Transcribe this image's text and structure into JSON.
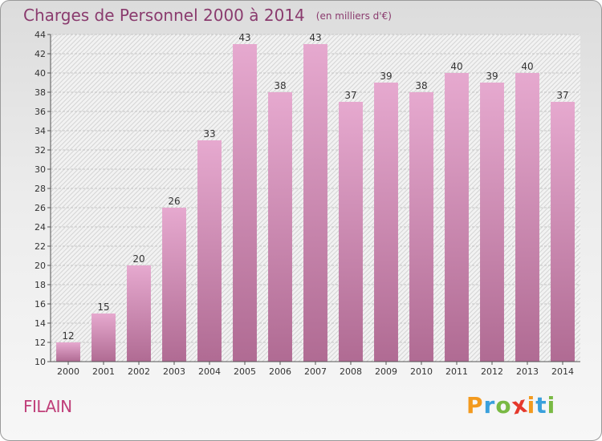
{
  "header": {
    "title": "Charges de Personnel 2000 à 2014",
    "subtitle": "(en milliers d'€)"
  },
  "footer": {
    "commune": "FILAIN",
    "logo_letters": [
      "P",
      "r",
      "o",
      "x",
      "i",
      "t",
      "i"
    ],
    "logo_colors": [
      "#f39a1e",
      "#3aa0dc",
      "#79b943",
      "#e5382c",
      "#f39a1e",
      "#3aa0dc",
      "#79b943"
    ]
  },
  "chart_data": {
    "type": "bar",
    "title": "Charges de Personnel 2000 à 2014",
    "subtitle": "(en milliers d'€)",
    "categories": [
      "2000",
      "2001",
      "2002",
      "2003",
      "2004",
      "2005",
      "2006",
      "2007",
      "2008",
      "2009",
      "2010",
      "2011",
      "2012",
      "2013",
      "2014"
    ],
    "values": [
      12,
      15,
      20,
      26,
      33,
      43,
      38,
      43,
      37,
      39,
      38,
      40,
      39,
      40,
      37
    ],
    "ylim": [
      10,
      44
    ],
    "yticks": [
      10,
      12,
      14,
      16,
      18,
      20,
      22,
      24,
      26,
      28,
      30,
      32,
      34,
      36,
      38,
      40,
      42,
      44
    ],
    "grid": true,
    "bar_color": "#d98bb8",
    "xlabel": "",
    "ylabel": ""
  }
}
